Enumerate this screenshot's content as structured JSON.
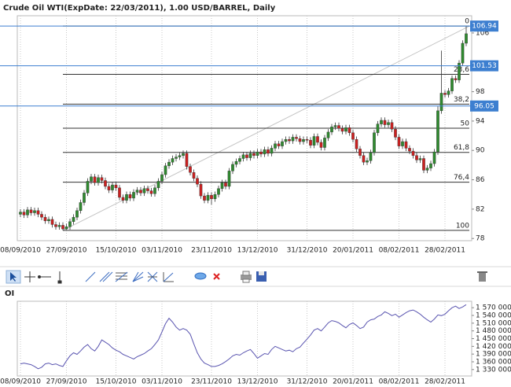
{
  "chart_data": [
    {
      "type": "candlestick",
      "title": "Crude Oil WTI(ExpDate: 22/03/2011), 1.00 USD/BARREL, Daily",
      "categories": [
        "08/09/2010",
        null,
        null,
        null,
        null,
        null,
        null,
        null,
        null,
        null,
        null,
        null,
        null,
        "27/09/2010",
        null,
        null,
        null,
        null,
        null,
        null,
        null,
        null,
        null,
        null,
        null,
        null,
        null,
        "15/10/2010",
        null,
        null,
        null,
        null,
        null,
        null,
        null,
        null,
        null,
        null,
        null,
        null,
        "03/11/2010",
        null,
        null,
        null,
        null,
        null,
        null,
        null,
        null,
        null,
        null,
        null,
        null,
        null,
        "23/11/2010",
        null,
        null,
        null,
        null,
        null,
        null,
        null,
        null,
        null,
        null,
        null,
        null,
        "13/12/2010",
        null,
        null,
        null,
        null,
        null,
        null,
        null,
        null,
        null,
        null,
        null,
        null,
        null,
        "31/12/2010",
        null,
        null,
        null,
        null,
        null,
        null,
        null,
        null,
        null,
        null,
        null,
        null,
        "20/01/2011",
        null,
        null,
        null,
        null,
        null,
        null,
        null,
        null,
        null,
        null,
        null,
        null,
        "08/02/2011",
        null,
        null,
        null,
        null,
        null,
        null,
        null,
        null,
        null,
        null,
        null,
        null,
        "28/02/2011",
        null,
        null,
        null,
        null,
        null,
        null
      ],
      "open": [
        81.3,
        81.6,
        81.2,
        81.9,
        81.5,
        81.8,
        81.3,
        80.9,
        80.4,
        80.6,
        79.9,
        79.6,
        79.8,
        79.3,
        79.6,
        80.3,
        80.9,
        81.8,
        82.9,
        84.2,
        85.8,
        86.4,
        85.6,
        86.3,
        85.9,
        85.1,
        84.6,
        85.3,
        84.9,
        83.6,
        83.2,
        84.0,
        83.5,
        84.3,
        84.6,
        84.2,
        84.8,
        84.5,
        84.1,
        84.9,
        85.8,
        86.7,
        87.9,
        88.4,
        88.9,
        89.1,
        89.3,
        89.6,
        87.8,
        87.0,
        86.2,
        85.4,
        83.8,
        83.2,
        83.9,
        83.4,
        84.0,
        84.8,
        85.6,
        85.1,
        87.2,
        88.1,
        88.5,
        88.9,
        89.4,
        89.0,
        89.6,
        89.3,
        89.8,
        89.5,
        90.1,
        89.6,
        90.3,
        90.9,
        90.6,
        91.2,
        91.5,
        91.3,
        91.8,
        91.6,
        91.2,
        91.5,
        91.4,
        90.7,
        91.9,
        91.1,
        90.4,
        91.7,
        92.5,
        93.2,
        93.4,
        93.0,
        92.6,
        93.1,
        92.4,
        91.5,
        90.2,
        89.3,
        88.4,
        88.6,
        89.7,
        92.4,
        93.6,
        94.1,
        93.5,
        93.8,
        92.9,
        91.8,
        90.6,
        91.2,
        90.3,
        89.9,
        89.3,
        88.7,
        88.9,
        87.3,
        87.6,
        88.2,
        89.8,
        95.4,
        97.8,
        97.6,
        98.1,
        99.8,
        99.6,
        101.9,
        104.6
      ],
      "high": [
        82.0,
        82.0,
        82.3,
        82.3,
        82.2,
        82.2,
        81.7,
        81.3,
        81.0,
        81.0,
        80.3,
        80.2,
        80.2,
        80.0,
        80.7,
        81.3,
        82.2,
        83.3,
        84.6,
        86.2,
        86.8,
        86.8,
        86.7,
        86.7,
        86.3,
        85.5,
        85.7,
        85.7,
        85.3,
        84.0,
        84.4,
        84.4,
        84.7,
        85.0,
        85.0,
        85.2,
        85.2,
        84.9,
        85.3,
        86.2,
        87.1,
        88.3,
        88.8,
        89.3,
        89.5,
        89.7,
        90.0,
        90.0,
        88.2,
        87.4,
        86.6,
        85.8,
        84.2,
        84.3,
        84.3,
        84.4,
        85.2,
        86.0,
        86.0,
        87.6,
        88.5,
        88.9,
        89.3,
        89.8,
        89.8,
        90.0,
        90.0,
        90.2,
        90.2,
        90.5,
        90.5,
        90.7,
        91.3,
        91.3,
        91.6,
        91.9,
        91.9,
        92.2,
        92.2,
        92.0,
        91.9,
        91.9,
        91.8,
        92.3,
        92.3,
        91.5,
        92.1,
        92.9,
        93.6,
        93.8,
        93.8,
        93.4,
        93.5,
        93.5,
        92.8,
        91.9,
        90.6,
        89.7,
        89.0,
        90.1,
        92.8,
        94.0,
        94.5,
        94.5,
        94.2,
        94.2,
        93.3,
        92.2,
        91.6,
        91.6,
        90.7,
        90.3,
        89.7,
        89.3,
        89.3,
        88.0,
        88.6,
        90.2,
        96.0,
        103.6,
        98.2,
        98.5,
        100.2,
        100.2,
        102.3,
        105.0,
        106.94
      ],
      "low": [
        80.9,
        80.8,
        80.8,
        81.1,
        81.1,
        80.9,
        80.5,
        80.0,
        80.0,
        79.5,
        79.2,
        79.2,
        79.1,
        79.2,
        79.2,
        79.9,
        80.5,
        81.4,
        82.5,
        83.8,
        85.4,
        85.2,
        85.2,
        85.5,
        84.7,
        84.2,
        84.2,
        84.5,
        83.2,
        82.8,
        82.8,
        83.1,
        83.1,
        83.9,
        83.8,
        83.8,
        84.1,
        83.7,
        83.7,
        84.5,
        85.4,
        86.3,
        87.5,
        88.0,
        88.5,
        88.7,
        88.9,
        87.4,
        86.6,
        85.8,
        85.0,
        83.4,
        82.8,
        82.8,
        82.6,
        83.0,
        83.6,
        84.4,
        84.7,
        84.7,
        86.8,
        87.7,
        88.1,
        88.5,
        88.6,
        88.6,
        88.9,
        88.9,
        89.1,
        89.1,
        89.2,
        89.2,
        89.9,
        90.2,
        90.2,
        90.8,
        90.9,
        90.9,
        91.2,
        90.8,
        90.8,
        91.0,
        90.3,
        90.3,
        90.7,
        90.0,
        90.0,
        91.3,
        92.1,
        92.8,
        92.6,
        92.2,
        92.2,
        92.0,
        91.1,
        89.8,
        88.9,
        88.0,
        88.0,
        88.2,
        89.3,
        92.0,
        93.2,
        93.1,
        93.1,
        92.5,
        91.4,
        90.2,
        90.2,
        89.9,
        89.5,
        88.9,
        88.3,
        88.3,
        86.9,
        86.9,
        87.2,
        87.8,
        89.4,
        95.0,
        97.2,
        97.2,
        97.7,
        99.2,
        99.2,
        101.5,
        104.2
      ],
      "close": [
        81.6,
        81.2,
        81.9,
        81.5,
        81.8,
        81.3,
        80.9,
        80.4,
        80.6,
        79.9,
        79.6,
        79.8,
        79.3,
        79.6,
        80.3,
        80.9,
        81.8,
        82.9,
        84.2,
        85.8,
        86.4,
        85.6,
        86.3,
        85.9,
        85.1,
        84.6,
        85.3,
        84.9,
        83.6,
        83.2,
        84.0,
        83.5,
        84.3,
        84.6,
        84.2,
        84.8,
        84.5,
        84.1,
        84.9,
        85.8,
        86.7,
        87.9,
        88.4,
        88.9,
        89.1,
        89.3,
        89.6,
        87.8,
        87.0,
        86.2,
        85.4,
        83.8,
        83.2,
        83.9,
        83.4,
        84.0,
        84.8,
        85.6,
        85.1,
        87.2,
        88.1,
        88.5,
        88.9,
        89.4,
        89.0,
        89.6,
        89.3,
        89.8,
        89.5,
        90.1,
        89.6,
        90.3,
        90.9,
        90.6,
        91.2,
        91.5,
        91.3,
        91.8,
        91.6,
        91.2,
        91.5,
        91.4,
        90.7,
        91.9,
        91.1,
        90.4,
        91.7,
        92.5,
        93.2,
        93.4,
        93.0,
        92.6,
        93.1,
        92.4,
        91.5,
        90.2,
        89.3,
        88.4,
        88.6,
        89.7,
        92.4,
        93.6,
        94.1,
        93.5,
        93.8,
        92.9,
        91.8,
        90.6,
        91.2,
        90.3,
        89.9,
        89.3,
        88.7,
        88.9,
        87.3,
        87.6,
        88.2,
        89.8,
        95.4,
        97.8,
        97.6,
        98.1,
        99.8,
        99.6,
        101.9,
        104.6,
        105.9
      ],
      "up_color": "#2f8a2f",
      "down_color": "#cc2020",
      "ylim": [
        77.7,
        108.35
      ],
      "yticks": [
        78,
        82,
        86,
        90,
        94,
        98,
        106
      ],
      "price_lines": [
        106.94,
        101.53,
        96.05
      ],
      "price_line_color": "#3d7fd0",
      "fibonacci": {
        "high": 106.94,
        "low": 79.1,
        "color": "#333333",
        "levels": [
          0,
          {
            "value": 23.6,
            "label": "23,6"
          },
          {
            "value": 38.2,
            "label": "38,2"
          },
          50,
          {
            "value": 61.8,
            "label": "61,8"
          },
          {
            "value": 76.4,
            "label": "76,4"
          },
          100
        ]
      }
    },
    {
      "type": "line",
      "title": "OI",
      "categories": [
        "08/09/2010",
        null,
        null,
        null,
        null,
        null,
        null,
        null,
        null,
        null,
        null,
        null,
        null,
        "27/09/2010",
        null,
        null,
        null,
        null,
        null,
        null,
        null,
        null,
        null,
        null,
        null,
        null,
        null,
        "15/10/2010",
        null,
        null,
        null,
        null,
        null,
        null,
        null,
        null,
        null,
        null,
        null,
        null,
        "03/11/2010",
        null,
        null,
        null,
        null,
        null,
        null,
        null,
        null,
        null,
        null,
        null,
        null,
        null,
        "23/11/2010",
        null,
        null,
        null,
        null,
        null,
        null,
        null,
        null,
        null,
        null,
        null,
        null,
        "13/12/2010",
        null,
        null,
        null,
        null,
        null,
        null,
        null,
        null,
        null,
        null,
        null,
        null,
        null,
        "31/12/2010",
        null,
        null,
        null,
        null,
        null,
        null,
        null,
        null,
        null,
        null,
        null,
        null,
        "20/01/2011",
        null,
        null,
        null,
        null,
        null,
        null,
        null,
        null,
        null,
        null,
        null,
        null,
        "08/02/2011",
        null,
        null,
        null,
        null,
        null,
        null,
        null,
        null,
        null,
        null,
        null,
        null,
        "28/02/2011",
        null,
        null,
        null,
        null,
        null,
        null
      ],
      "values": [
        1352000,
        1355000,
        1352000,
        1349000,
        1342000,
        1333000,
        1339000,
        1352000,
        1355000,
        1349000,
        1352000,
        1346000,
        1342000,
        1364000,
        1383000,
        1395000,
        1389000,
        1402000,
        1417000,
        1427000,
        1411000,
        1402000,
        1420000,
        1445000,
        1436000,
        1427000,
        1414000,
        1405000,
        1399000,
        1389000,
        1383000,
        1377000,
        1371000,
        1380000,
        1386000,
        1392000,
        1402000,
        1411000,
        1427000,
        1445000,
        1476000,
        1508000,
        1529000,
        1514000,
        1495000,
        1483000,
        1489000,
        1483000,
        1467000,
        1430000,
        1395000,
        1371000,
        1355000,
        1349000,
        1342000,
        1342000,
        1346000,
        1352000,
        1361000,
        1371000,
        1383000,
        1389000,
        1386000,
        1395000,
        1402000,
        1408000,
        1392000,
        1374000,
        1383000,
        1392000,
        1389000,
        1408000,
        1420000,
        1414000,
        1408000,
        1402000,
        1405000,
        1399000,
        1411000,
        1417000,
        1433000,
        1448000,
        1464000,
        1483000,
        1489000,
        1480000,
        1495000,
        1511000,
        1520000,
        1517000,
        1511000,
        1501000,
        1492000,
        1505000,
        1511000,
        1501000,
        1489000,
        1495000,
        1514000,
        1523000,
        1526000,
        1536000,
        1542000,
        1554000,
        1548000,
        1539000,
        1545000,
        1533000,
        1542000,
        1551000,
        1558000,
        1561000,
        1554000,
        1545000,
        1533000,
        1523000,
        1514000,
        1526000,
        1542000,
        1539000,
        1545000,
        1558000,
        1570000,
        1576000,
        1567000,
        1573000,
        1582000
      ],
      "color": "#5a55b0",
      "ylim": [
        1305000,
        1595000
      ],
      "yticks": [
        {
          "value": 1330000,
          "label": "1 330 000"
        },
        {
          "value": 1360000,
          "label": "1 360 000"
        },
        {
          "value": 1390000,
          "label": "1 390 000"
        },
        {
          "value": 1420000,
          "label": "1 420 000"
        },
        {
          "value": 1450000,
          "label": "1 450 000"
        },
        {
          "value": 1480000,
          "label": "1 480 000"
        },
        {
          "value": 1510000,
          "label": "1 510 000"
        },
        {
          "value": 1540000,
          "label": "1 540 000"
        },
        {
          "value": 1570000,
          "label": "1 570 000"
        }
      ]
    }
  ]
}
